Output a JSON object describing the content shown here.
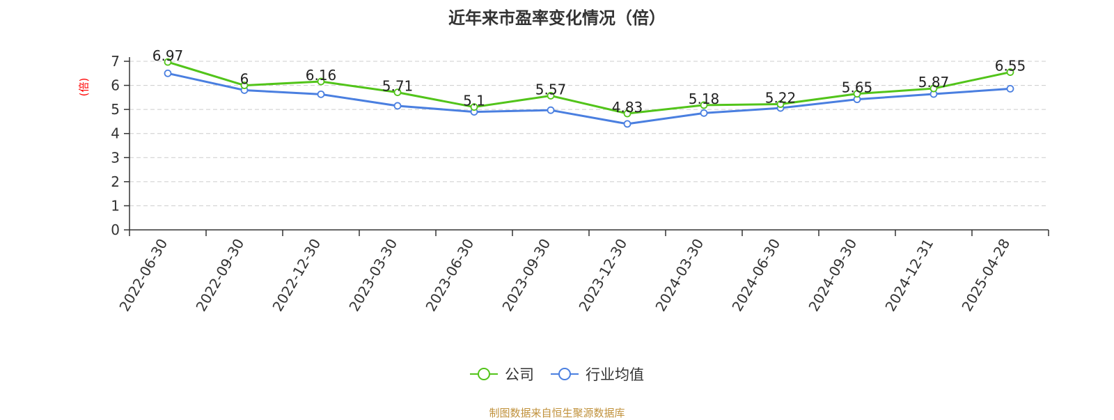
{
  "chart_data": {
    "type": "line",
    "title": "近年来市盈率变化情况（倍）",
    "ylabel": "(倍)",
    "xlabel": "",
    "categories": [
      "2022-06-30",
      "2022-09-30",
      "2022-12-30",
      "2023-03-30",
      "2023-06-30",
      "2023-09-30",
      "2023-12-30",
      "2024-03-30",
      "2024-06-30",
      "2024-09-30",
      "2024-12-31",
      "2025-04-28"
    ],
    "series": [
      {
        "name": "公司",
        "color": "#52c41a",
        "values": [
          6.97,
          6,
          6.16,
          5.71,
          5.1,
          5.57,
          4.83,
          5.18,
          5.22,
          5.65,
          5.87,
          6.55
        ],
        "labels": [
          "6.97",
          "6",
          "6.16",
          "5.71",
          "5.1",
          "5.57",
          "4.83",
          "5.18",
          "5.22",
          "5.65",
          "5.87",
          "6.55"
        ]
      },
      {
        "name": "行业均值",
        "color": "#4a7fe0",
        "values": [
          6.5,
          5.8,
          5.63,
          5.15,
          4.9,
          4.97,
          4.4,
          4.85,
          5.06,
          5.42,
          5.64,
          5.86
        ]
      }
    ],
    "ylim": [
      0,
      7
    ],
    "yticks": [
      0,
      1,
      2,
      3,
      4,
      5,
      6,
      7
    ],
    "grid": true,
    "legend_position": "bottom-center"
  },
  "source_text": "制图数据来自恒生聚源数据库"
}
